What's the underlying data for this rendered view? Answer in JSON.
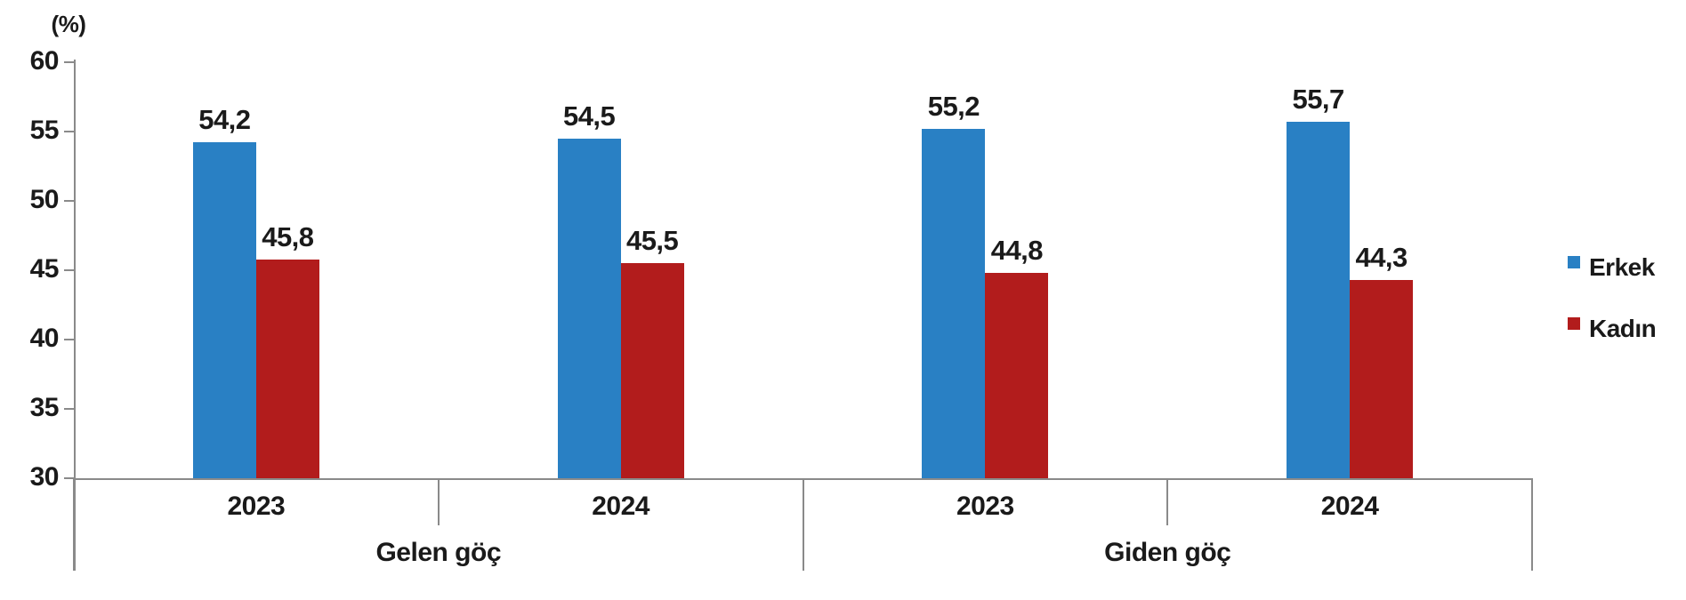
{
  "chart_data": {
    "type": "bar",
    "unit": "(%)",
    "title": "",
    "categories": [
      "2023",
      "2024",
      "2023",
      "2024"
    ],
    "group_labels": [
      "Gelen göç",
      "Giden göç"
    ],
    "group_sizes": [
      2,
      2
    ],
    "series": [
      {
        "name": "Erkek",
        "color": "#2980C4",
        "values": [
          54.2,
          54.5,
          55.2,
          55.7
        ],
        "value_labels": [
          "54,2",
          "54,5",
          "55,2",
          "55,7"
        ]
      },
      {
        "name": "Kadın",
        "color": "#B21C1C",
        "values": [
          45.8,
          45.5,
          44.8,
          44.3
        ],
        "value_labels": [
          "45,8",
          "45,5",
          "44,8",
          "44,3"
        ]
      }
    ],
    "ylim": [
      30,
      60
    ],
    "yticks": [
      30,
      35,
      40,
      45,
      50,
      55,
      60
    ],
    "grid": false,
    "legend_position": "right",
    "axis_color": "#8a8a8a",
    "text_color": "#1a1a1a"
  }
}
